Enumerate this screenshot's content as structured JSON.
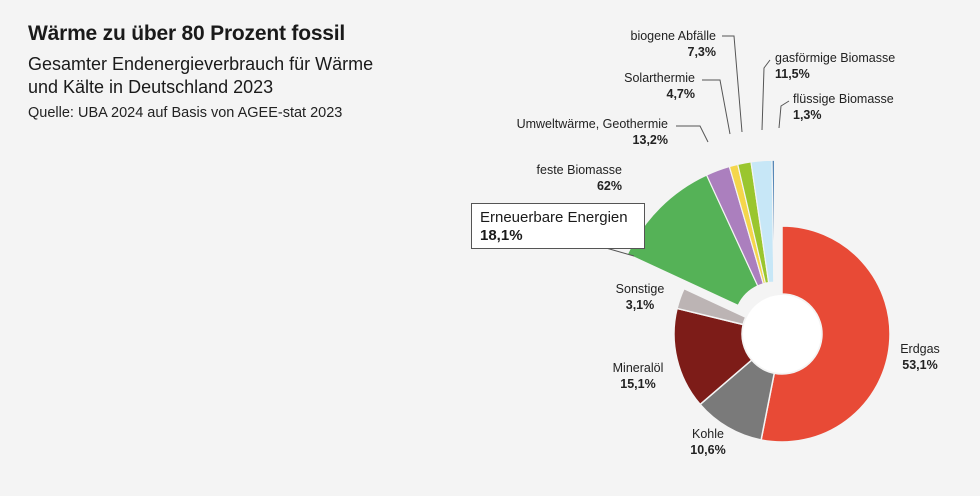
{
  "header": {
    "title": "Wärme zu über 80 Prozent fossil",
    "subtitle_line1": "Gesamter Endenergieverbrauch für Wärme",
    "subtitle_line2": "und Kälte in Deutschland 2023",
    "source": "Quelle: UBA 2024 auf Basis von AGEE-stat 2023"
  },
  "chart_data": {
    "type": "pie",
    "title": "Wärme zu über 80 Prozent fossil",
    "subtitle": "Gesamter Endenergieverbrauch für Wärme und Kälte in Deutschland 2023",
    "main_slices": [
      {
        "label": "Erdgas",
        "value": 53.1,
        "value_text": "53,1%",
        "color": "#e84a36"
      },
      {
        "label": "Kohle",
        "value": 10.6,
        "value_text": "10,6%",
        "color": "#7a7a7a"
      },
      {
        "label": "Mineralöl",
        "value": 15.1,
        "value_text": "15,1%",
        "color": "#7d1c18"
      },
      {
        "label": "Sonstige",
        "value": 3.1,
        "value_text": "3,1%",
        "color": "#bcb4b4"
      },
      {
        "label": "Erneuerbare Energien",
        "value": 18.1,
        "value_text": "18,1%",
        "color": "#55b257"
      }
    ],
    "renewables_breakdown": [
      {
        "label": "feste Biomasse",
        "value": 62,
        "value_text": "62%",
        "color": "#55b257"
      },
      {
        "label": "Umweltwärme, Geothermie",
        "value": 13.2,
        "value_text": "13,2%",
        "color": "#ab7fbe"
      },
      {
        "label": "Solarthermie",
        "value": 4.7,
        "value_text": "4,7%",
        "color": "#f5d64b"
      },
      {
        "label": "biogene Abfälle",
        "value": 7.3,
        "value_text": "7,3%",
        "color": "#9ac62e"
      },
      {
        "label": "gasförmige Biomasse",
        "value": 11.5,
        "value_text": "11,5%",
        "color": "#c7e7f7"
      },
      {
        "label": "flüssige Biomasse",
        "value": 1.3,
        "value_text": "1,3%",
        "color": "#3d76ad"
      }
    ]
  }
}
